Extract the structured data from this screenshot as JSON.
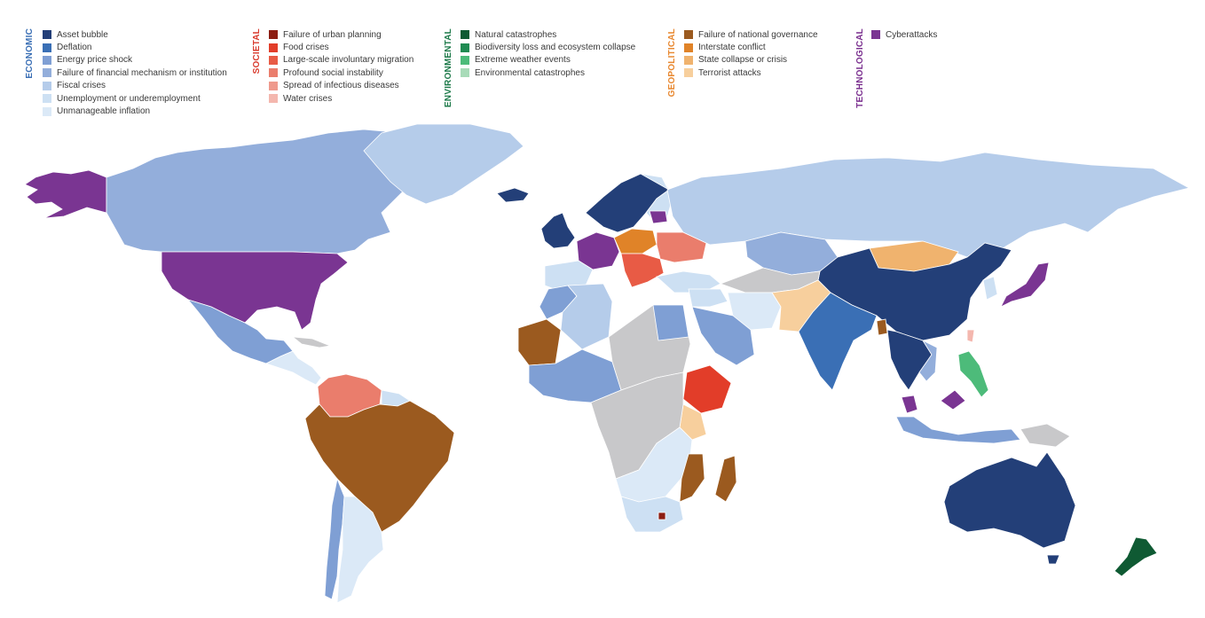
{
  "legend": {
    "economic": {
      "title": "ECONOMIC",
      "color": "#3a6fb5",
      "items": [
        {
          "label": "Asset bubble",
          "color": "#233f78"
        },
        {
          "label": "Deflation",
          "color": "#3a6fb5"
        },
        {
          "label": "Energy price shock",
          "color": "#7f9fd4"
        },
        {
          "label": "Failure of financial mechanism or institution",
          "color": "#93aedb"
        },
        {
          "label": "Fiscal crises",
          "color": "#b5ccea"
        },
        {
          "label": "Unemployment or underemployment",
          "color": "#cde0f3"
        },
        {
          "label": "Unmanageable inflation",
          "color": "#dbe9f7"
        }
      ]
    },
    "societal": {
      "title": "SOCIETAL",
      "color": "#d93c2f",
      "items": [
        {
          "label": "Failure of urban planning",
          "color": "#8c1d12"
        },
        {
          "label": "Food crises",
          "color": "#e23d29"
        },
        {
          "label": "Large-scale involuntary migration",
          "color": "#e85b45"
        },
        {
          "label": "Profound social instability",
          "color": "#ea7d6c"
        },
        {
          "label": "Spread of infectious diseases",
          "color": "#ef9a8d"
        },
        {
          "label": "Water crises",
          "color": "#f4b7ae"
        }
      ]
    },
    "environmental": {
      "title": "ENVIRONMENTAL",
      "color": "#1e7a4a",
      "items": [
        {
          "label": "Natural catastrophes",
          "color": "#0f5a33"
        },
        {
          "label": "Biodiversity loss and ecosystem collapse",
          "color": "#1f8b52"
        },
        {
          "label": "Extreme weather events",
          "color": "#4dbb7a"
        },
        {
          "label": "Environmental catastrophes",
          "color": "#a8dbb8"
        }
      ]
    },
    "geopolitical": {
      "title": "GEOPOLITICAL",
      "color": "#e8872e",
      "items": [
        {
          "label": "Failure of national governance",
          "color": "#9b5a1f"
        },
        {
          "label": "Interstate conflict",
          "color": "#e08328"
        },
        {
          "label": "State collapse or crisis",
          "color": "#f0b36e"
        },
        {
          "label": "Terrorist attacks",
          "color": "#f7cf9d"
        }
      ]
    },
    "technological": {
      "title": "TECHNOLOGICAL",
      "color": "#7a2f8f",
      "items": [
        {
          "label": "Cyberattacks",
          "color": "#7a3592"
        }
      ]
    }
  },
  "map": {
    "no_data_color": "#c8c8ca"
  }
}
